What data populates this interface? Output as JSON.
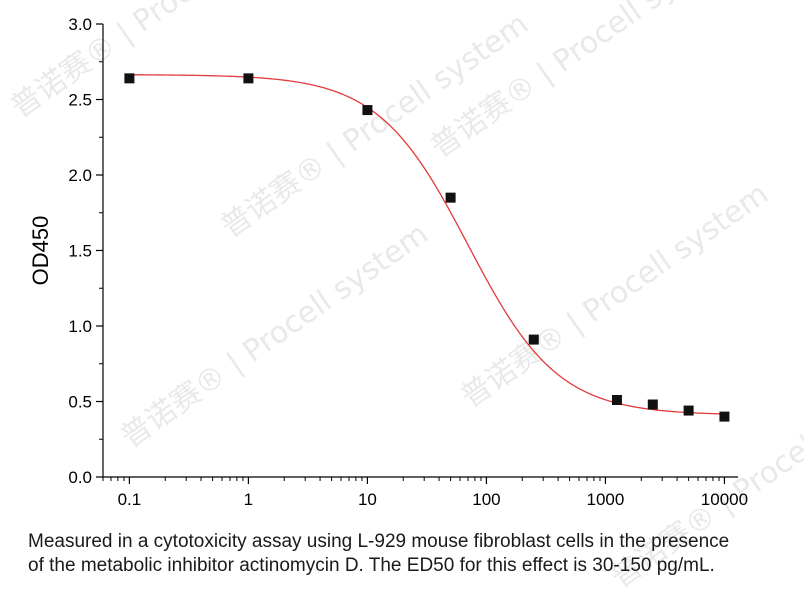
{
  "chart_data": {
    "type": "scatter",
    "ylabel": "OD450",
    "xscale": "log",
    "xlim": [
      0.06,
      13000
    ],
    "ylim": [
      0.0,
      3.0
    ],
    "xticks": [
      0.1,
      1,
      10,
      100,
      1000,
      10000
    ],
    "xtick_labels": [
      "0.1",
      "1",
      "10",
      "100",
      "1000",
      "10000"
    ],
    "yticks": [
      0.0,
      0.5,
      1.0,
      1.5,
      2.0,
      2.5,
      3.0
    ],
    "ytick_labels": [
      "0.0",
      "0.5",
      "1.0",
      "1.5",
      "2.0",
      "2.5",
      "3.0"
    ],
    "points": {
      "x": [
        0.1,
        1,
        10,
        50,
        250,
        1250,
        2500,
        5000,
        10000
      ],
      "y": [
        2.64,
        2.64,
        2.43,
        1.85,
        0.91,
        0.51,
        0.48,
        0.44,
        0.4
      ]
    },
    "fit": {
      "type": "4PL",
      "top": 2.665,
      "bottom": 0.41,
      "ec50": 70,
      "hill": 1.15
    },
    "colors": {
      "points": "#111111",
      "fit": "#e23a3a",
      "axis": "#000000"
    }
  },
  "caption": {
    "line1": "Measured in a cytotoxicity assay using L-929 mouse fibroblast cells in the presence",
    "line2": "of the metabolic inhibitor actinomycin D. The ED50 for this effect is 30-150 pg/mL."
  },
  "watermark": {
    "brand_cn": "普诺赛®",
    "brand": "Procell",
    "brand_sub": "system"
  }
}
